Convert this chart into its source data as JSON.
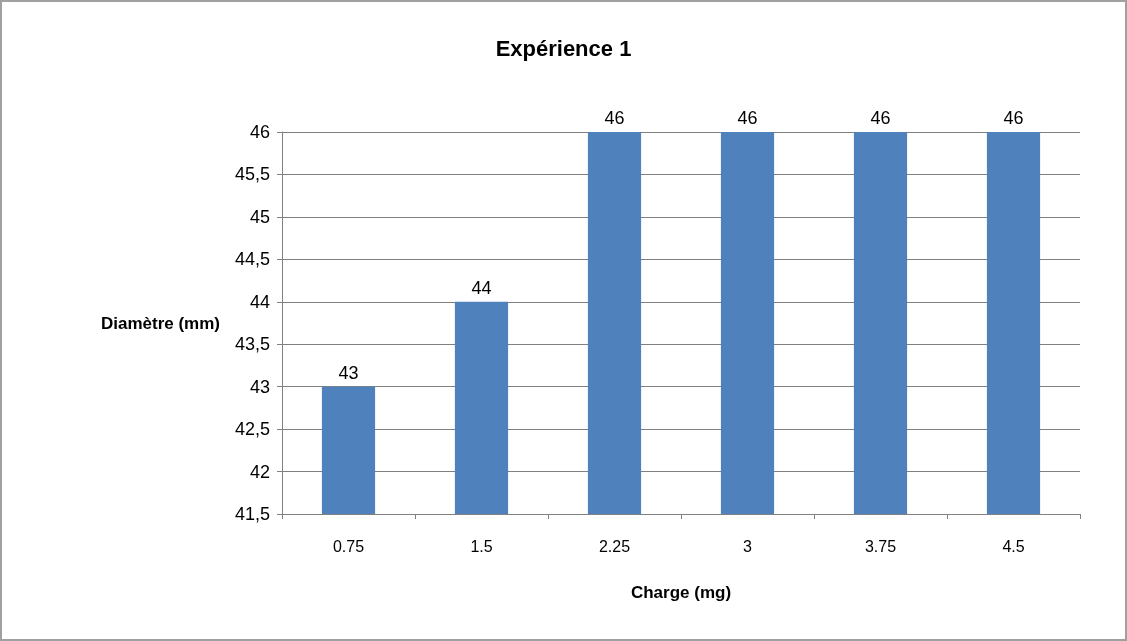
{
  "chart_data": {
    "type": "bar",
    "title": "Expérience 1",
    "xlabel": "Charge (mg)",
    "ylabel": "Diamètre (mm)",
    "categories": [
      "0.75",
      "1.5",
      "2.25",
      "3",
      "3.75",
      "4.5"
    ],
    "values": [
      43,
      44,
      46,
      46,
      46,
      46
    ],
    "color": "#4f81bd",
    "ylim": [
      41.5,
      46
    ],
    "yticks": [
      {
        "value": 41.5,
        "label": "41,5"
      },
      42,
      {
        "value": 42.5,
        "label": "42,5"
      },
      43,
      {
        "value": 43.5,
        "label": "43,5"
      },
      44,
      {
        "value": 44.5,
        "label": "44,5"
      },
      45,
      {
        "value": 45.5,
        "label": "45,5"
      },
      46
    ],
    "grid": "y",
    "data_labels": true
  }
}
